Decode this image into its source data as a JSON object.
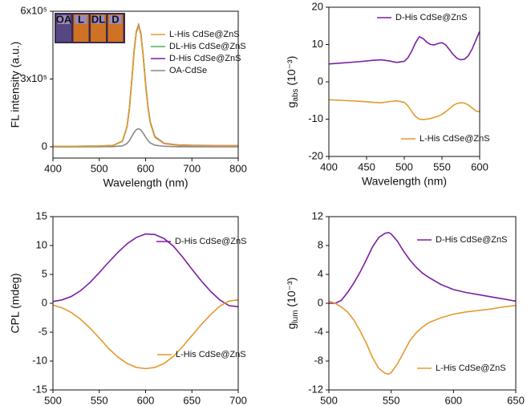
{
  "chart_data": [
    {
      "type": "line",
      "x_label": "Wavelength (nm)",
      "y_label": "FL intensity (a.u.)",
      "annotations": [
        "OA",
        "L",
        "DL",
        "D"
      ],
      "xlim": [
        400,
        800
      ],
      "xticks": [
        400,
        500,
        600,
        700,
        800
      ],
      "ylim": [
        -50000,
        600000
      ],
      "yticks": [
        0,
        {
          "value": 300000,
          "label": "3x10⁵"
        },
        {
          "value": 600000,
          "label": "6x10⁵"
        }
      ],
      "x": [
        400,
        450,
        500,
        530,
        550,
        560,
        565,
        570,
        575,
        580,
        585,
        590,
        595,
        600,
        605,
        610,
        620,
        640,
        670,
        700,
        750,
        800
      ],
      "series": [
        {
          "name": "L-His CdSe@ZnS",
          "color": "#e39a2d",
          "values": [
            2000,
            2000,
            3000,
            6000,
            24000,
            88000,
            165000,
            285000,
            415000,
            505000,
            535000,
            495000,
            395000,
            275000,
            175000,
            105000,
            42000,
            14000,
            7000,
            5000,
            4000,
            4000
          ]
        },
        {
          "name": "DL-His CdSe@ZnS",
          "color": "#4caf50",
          "values": [
            2000,
            2000,
            3000,
            6000,
            24000,
            89000,
            168000,
            288000,
            418000,
            508000,
            537000,
            498000,
            398000,
            278000,
            178000,
            108000,
            44000,
            14000,
            7000,
            5000,
            4000,
            4000
          ]
        },
        {
          "name": "D-His CdSe@ZnS",
          "color": "#7b1fa2",
          "values": [
            2000,
            2000,
            3000,
            6000,
            25000,
            90000,
            170000,
            290000,
            420000,
            510000,
            540000,
            500000,
            400000,
            280000,
            180000,
            110000,
            45000,
            15000,
            8000,
            6000,
            5000,
            5000
          ]
        },
        {
          "name": "OA-CdSe",
          "color": "#888888",
          "values": [
            0,
            0,
            0,
            1000,
            4000,
            15000,
            27000,
            45000,
            63000,
            76000,
            80000,
            74000,
            60000,
            43000,
            28000,
            17000,
            7000,
            2000,
            500,
            0,
            0,
            0
          ]
        }
      ]
    },
    {
      "type": "line",
      "x_label": "Wavelength (nm)",
      "y_label": {
        "text": "g",
        "sub": "abs",
        "unit": " (10⁻³)"
      },
      "xlim": [
        400,
        600
      ],
      "xticks": [
        400,
        450,
        500,
        550,
        600
      ],
      "ylim": [
        -20,
        20
      ],
      "yticks": [
        -20,
        -10,
        0,
        10,
        20
      ],
      "x": [
        400,
        420,
        440,
        460,
        470,
        480,
        490,
        500,
        505,
        510,
        515,
        520,
        525,
        530,
        535,
        540,
        545,
        550,
        555,
        560,
        565,
        570,
        575,
        580,
        585,
        590,
        595,
        600
      ],
      "series": [
        {
          "name": "D-His CdSe@ZnS",
          "color": "#7b1fa2",
          "values": [
            4.8,
            5.1,
            5.4,
            5.8,
            5.9,
            5.6,
            5.2,
            5.5,
            6.5,
            8.3,
            10.5,
            12.1,
            11.6,
            10.6,
            10.0,
            9.9,
            10.3,
            10.5,
            9.9,
            8.6,
            7.3,
            6.3,
            5.9,
            6.1,
            7.0,
            8.8,
            11.2,
            13.5
          ]
        },
        {
          "name": "L-His CdSe@ZnS",
          "color": "#e39a2d",
          "values": [
            -4.8,
            -5.0,
            -5.2,
            -5.5,
            -5.6,
            -5.3,
            -5.1,
            -5.5,
            -6.5,
            -8.0,
            -9.3,
            -10.0,
            -10.1,
            -10.0,
            -9.8,
            -9.5,
            -9.2,
            -8.7,
            -8.0,
            -7.2,
            -6.3,
            -5.8,
            -5.6,
            -5.7,
            -6.2,
            -7.0,
            -7.8,
            -8.0
          ]
        }
      ]
    },
    {
      "type": "line",
      "x_label": "Wavelength (nm)",
      "y_label": "CPL (mdeg)",
      "xlim": [
        500,
        700
      ],
      "xticks": [
        500,
        550,
        600,
        650,
        700
      ],
      "ylim": [
        -15,
        15
      ],
      "yticks": [
        -15,
        -10,
        -5,
        0,
        5,
        10,
        15
      ],
      "x": [
        500,
        510,
        520,
        530,
        540,
        550,
        560,
        570,
        580,
        590,
        600,
        610,
        620,
        630,
        640,
        650,
        660,
        670,
        680,
        690,
        700
      ],
      "series": [
        {
          "name": "D-His CdSe@ZnS",
          "color": "#7b1fa2",
          "values": [
            0.3,
            0.6,
            1.2,
            2.2,
            3.6,
            5.3,
            7.1,
            8.8,
            10.3,
            11.4,
            12.0,
            11.9,
            11.2,
            9.9,
            8.0,
            5.9,
            3.9,
            2.1,
            0.6,
            -0.4,
            -0.6
          ]
        },
        {
          "name": "L-His CdSe@ZnS",
          "color": "#e39a2d",
          "values": [
            -0.3,
            -0.8,
            -1.6,
            -2.8,
            -4.3,
            -6.0,
            -7.8,
            -9.3,
            -10.4,
            -11.1,
            -11.3,
            -11.1,
            -10.4,
            -9.2,
            -7.5,
            -5.6,
            -3.7,
            -2.0,
            -0.5,
            0.4,
            0.6
          ]
        }
      ]
    },
    {
      "type": "line",
      "x_label": "Wavelength (nm)",
      "y_label": {
        "text": "g",
        "sub": "lum",
        "unit": " (10⁻³)"
      },
      "xlim": [
        500,
        650
      ],
      "xticks": [
        500,
        550,
        600,
        650
      ],
      "ylim": [
        -12,
        12
      ],
      "yticks": [
        -12,
        -8,
        -4,
        0,
        4,
        8,
        12
      ],
      "x": [
        500,
        505,
        510,
        515,
        520,
        525,
        530,
        535,
        540,
        545,
        548,
        550,
        555,
        560,
        565,
        570,
        575,
        580,
        590,
        600,
        610,
        620,
        630,
        640,
        650
      ],
      "series": [
        {
          "name": "D-His CdSe@ZnS",
          "color": "#7b1fa2",
          "values": [
            0,
            0,
            0.4,
            1.5,
            2.8,
            4.3,
            6.0,
            7.8,
            9.1,
            9.7,
            9.8,
            9.6,
            8.6,
            7.2,
            6.0,
            5.0,
            4.2,
            3.6,
            2.6,
            1.9,
            1.5,
            1.2,
            0.9,
            0.6,
            0.3
          ]
        },
        {
          "name": "L-His CdSe@ZnS",
          "color": "#e39a2d",
          "values": [
            0.3,
            0,
            -0.5,
            -1.2,
            -2.3,
            -3.8,
            -5.5,
            -7.5,
            -9.0,
            -9.7,
            -9.8,
            -9.6,
            -8.4,
            -6.8,
            -5.2,
            -4.1,
            -3.3,
            -2.7,
            -2.0,
            -1.5,
            -1.2,
            -1.0,
            -0.8,
            -0.5,
            -0.3
          ]
        }
      ]
    }
  ]
}
